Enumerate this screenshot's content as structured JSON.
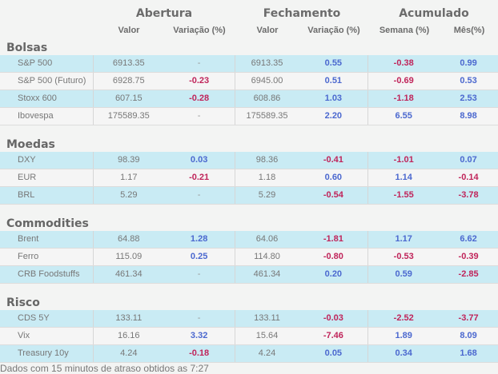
{
  "header": {
    "groups": [
      "Abertura",
      "Fechamento",
      "Acumulado"
    ],
    "columns": [
      "Valor",
      "Variação (%)",
      "Valor",
      "Variação (%)",
      "Semana (%)",
      "Mês(%)"
    ]
  },
  "colors": {
    "positive": "#4b68cf",
    "negative": "#c0245a",
    "row_highlight": "#c9ebf4"
  },
  "sections": [
    {
      "title": "Bolsas",
      "rows": [
        [
          "S&P 500",
          "6913.35",
          "-",
          "6913.35",
          "0.55",
          "-0.38",
          "0.99"
        ],
        [
          "S&P 500 (Futuro)",
          "6928.75",
          "-0.23",
          "6945.00",
          "0.51",
          "-0.69",
          "0.53"
        ],
        [
          "Stoxx 600",
          "607.15",
          "-0.28",
          "608.86",
          "1.03",
          "-1.18",
          "2.53"
        ],
        [
          "Ibovespa",
          "175589.35",
          "-",
          "175589.35",
          "2.20",
          "6.55",
          "8.98"
        ]
      ]
    },
    {
      "title": "Moedas",
      "rows": [
        [
          "DXY",
          "98.39",
          "0.03",
          "98.36",
          "-0.41",
          "-1.01",
          "0.07"
        ],
        [
          "EUR",
          "1.17",
          "-0.21",
          "1.18",
          "0.60",
          "1.14",
          "-0.14"
        ],
        [
          "BRL",
          "5.29",
          "-",
          "5.29",
          "-0.54",
          "-1.55",
          "-3.78"
        ]
      ]
    },
    {
      "title": "Commodities",
      "rows": [
        [
          "Brent",
          "64.88",
          "1.28",
          "64.06",
          "-1.81",
          "1.17",
          "6.62"
        ],
        [
          "Ferro",
          "115.09",
          "0.25",
          "114.80",
          "-0.80",
          "-0.53",
          "-0.39"
        ],
        [
          "CRB Foodstuffs",
          "461.34",
          "-",
          "461.34",
          "0.20",
          "0.59",
          "-2.85"
        ]
      ]
    },
    {
      "title": "Risco",
      "rows": [
        [
          "CDS 5Y",
          "133.11",
          "-",
          "133.11",
          "-0.03",
          "-2.52",
          "-3.77"
        ],
        [
          "Vix",
          "16.16",
          "3.32",
          "15.64",
          "-7.46",
          "1.89",
          "8.09"
        ],
        [
          "Treasury 10y",
          "4.24",
          "-0.18",
          "4.24",
          "0.05",
          "0.34",
          "1.68"
        ]
      ]
    }
  ],
  "footer": "Dados com 15 minutos de atraso obtidos as 7:27"
}
